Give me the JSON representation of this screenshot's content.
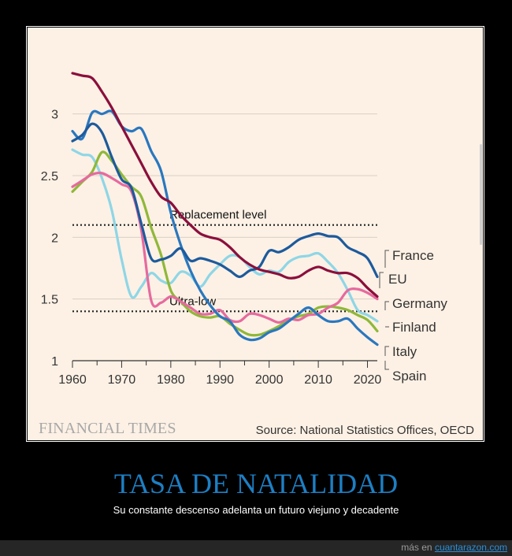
{
  "chart_data": {
    "type": "line",
    "xlim": [
      1960,
      2022
    ],
    "ylim": [
      1,
      3.4
    ],
    "xticks": [
      1960,
      1970,
      1980,
      1990,
      2000,
      2010,
      2020
    ],
    "xtick_labels": [
      "1960",
      "1970",
      "1980",
      "1990",
      "2000",
      "2010",
      "2020"
    ],
    "yticks": [
      1,
      1.5,
      2,
      2.5,
      3
    ],
    "ytick_labels": [
      "1",
      "1.5",
      "2",
      "2.5",
      "3"
    ],
    "grid": "horizontal",
    "reference_lines": [
      {
        "label": "Replacement level",
        "value": 2.1
      },
      {
        "label": "Ultra-low",
        "value": 1.4
      }
    ],
    "series": [
      {
        "name": "France",
        "color": "#1d5a9c",
        "x": [
          1960,
          1962,
          1964,
          1966,
          1968,
          1970,
          1972,
          1974,
          1976,
          1978,
          1980,
          1982,
          1984,
          1986,
          1988,
          1990,
          1992,
          1994,
          1996,
          1998,
          2000,
          2002,
          2004,
          2006,
          2008,
          2010,
          2012,
          2014,
          2016,
          2018,
          2020,
          2022
        ],
        "y": [
          2.78,
          2.83,
          2.92,
          2.85,
          2.65,
          2.47,
          2.4,
          2.11,
          1.83,
          1.82,
          1.85,
          1.91,
          1.81,
          1.83,
          1.81,
          1.78,
          1.73,
          1.68,
          1.73,
          1.76,
          1.89,
          1.88,
          1.92,
          1.98,
          2.01,
          2.03,
          2.01,
          2.0,
          1.92,
          1.88,
          1.83,
          1.68
        ]
      },
      {
        "name": "EU",
        "color": "#8b0f3c",
        "x": [
          1960,
          1962,
          1964,
          1966,
          1968,
          1970,
          1972,
          1974,
          1976,
          1978,
          1980,
          1982,
          1984,
          1986,
          1988,
          1990,
          1992,
          1994,
          1996,
          1998,
          2000,
          2002,
          2004,
          2006,
          2008,
          2010,
          2012,
          2014,
          2016,
          2018,
          2020,
          2022
        ],
        "y": [
          3.33,
          3.31,
          3.29,
          3.18,
          3.05,
          2.9,
          2.75,
          2.6,
          2.45,
          2.33,
          2.28,
          2.18,
          2.1,
          2.03,
          2.0,
          1.98,
          1.92,
          1.84,
          1.78,
          1.74,
          1.72,
          1.7,
          1.67,
          1.68,
          1.73,
          1.76,
          1.73,
          1.71,
          1.71,
          1.67,
          1.59,
          1.52
        ]
      },
      {
        "name": "Germany",
        "color": "#8fb839",
        "x": [
          1960,
          1962,
          1964,
          1966,
          1968,
          1970,
          1972,
          1974,
          1976,
          1978,
          1980,
          1982,
          1984,
          1986,
          1988,
          1990,
          1992,
          1994,
          1996,
          1998,
          2000,
          2002,
          2004,
          2006,
          2008,
          2010,
          2012,
          2014,
          2016,
          2018,
          2020,
          2022
        ],
        "y": [
          2.37,
          2.45,
          2.53,
          2.69,
          2.62,
          2.51,
          2.41,
          2.33,
          2.08,
          1.86,
          1.57,
          1.48,
          1.4,
          1.36,
          1.35,
          1.36,
          1.3,
          1.25,
          1.21,
          1.21,
          1.24,
          1.28,
          1.33,
          1.36,
          1.38,
          1.43,
          1.44,
          1.43,
          1.41,
          1.37,
          1.33,
          1.24
        ]
      },
      {
        "name": "Finland",
        "color": "#8ed6e6",
        "x": [
          1960,
          1962,
          1964,
          1966,
          1968,
          1970,
          1972,
          1974,
          1976,
          1978,
          1980,
          1982,
          1984,
          1986,
          1988,
          1990,
          1992,
          1994,
          1996,
          1998,
          2000,
          2002,
          2004,
          2006,
          2008,
          2010,
          2012,
          2014,
          2016,
          2018,
          2020,
          2022
        ],
        "y": [
          2.71,
          2.67,
          2.65,
          2.48,
          2.22,
          1.82,
          1.52,
          1.6,
          1.71,
          1.65,
          1.63,
          1.72,
          1.69,
          1.6,
          1.7,
          1.78,
          1.85,
          1.84,
          1.76,
          1.7,
          1.73,
          1.72,
          1.8,
          1.84,
          1.85,
          1.87,
          1.8,
          1.71,
          1.57,
          1.41,
          1.37,
          1.32
        ]
      },
      {
        "name": "Italy",
        "color": "#e66a9e",
        "x": [
          1960,
          1962,
          1964,
          1966,
          1968,
          1970,
          1972,
          1974,
          1976,
          1978,
          1980,
          1982,
          1984,
          1986,
          1988,
          1990,
          1992,
          1994,
          1996,
          1998,
          2000,
          2002,
          2004,
          2006,
          2008,
          2010,
          2012,
          2014,
          2016,
          2018,
          2020,
          2022
        ],
        "y": [
          2.41,
          2.46,
          2.51,
          2.52,
          2.48,
          2.43,
          2.37,
          2.06,
          1.49,
          1.47,
          1.52,
          1.48,
          1.43,
          1.38,
          1.38,
          1.41,
          1.33,
          1.32,
          1.38,
          1.37,
          1.34,
          1.31,
          1.34,
          1.33,
          1.37,
          1.38,
          1.43,
          1.47,
          1.57,
          1.58,
          1.55,
          1.5
        ]
      },
      {
        "name": "Spain",
        "color": "#2a77bf",
        "x": [
          1960,
          1962,
          1964,
          1966,
          1968,
          1970,
          1972,
          1974,
          1976,
          1978,
          1980,
          1982,
          1984,
          1986,
          1988,
          1990,
          1992,
          1994,
          1996,
          1998,
          2000,
          2002,
          2004,
          2006,
          2008,
          2010,
          2012,
          2014,
          2016,
          2018,
          2020,
          2022
        ],
        "y": [
          2.86,
          2.8,
          3.01,
          3.0,
          3.02,
          2.9,
          2.86,
          2.88,
          2.7,
          2.54,
          2.2,
          1.94,
          1.73,
          1.57,
          1.45,
          1.36,
          1.32,
          1.21,
          1.17,
          1.18,
          1.23,
          1.26,
          1.32,
          1.38,
          1.43,
          1.37,
          1.32,
          1.32,
          1.34,
          1.26,
          1.19,
          1.13
        ]
      }
    ],
    "legend_placement": "right",
    "source": "Source: National Statistics Offices, OECD"
  },
  "brand": "FINANCIAL TIMES",
  "headline": {
    "title": "TASA DE NATALIDAD",
    "subtitle": "Su constante descenso adelanta un futuro viejuno y decadente"
  },
  "footer": {
    "prefix": "más en",
    "link": "cuantarazon.com"
  }
}
